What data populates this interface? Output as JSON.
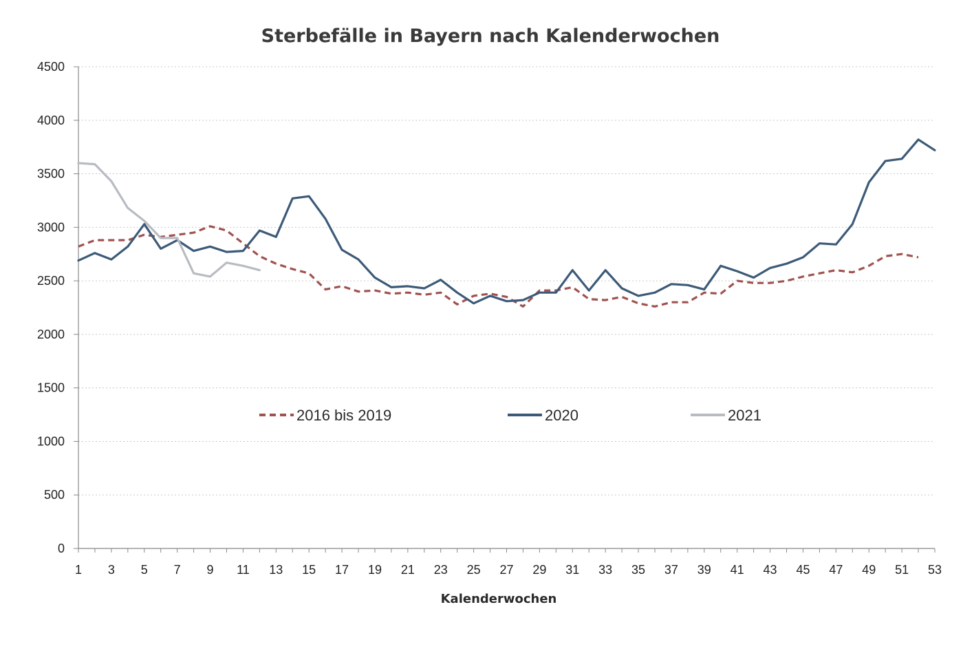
{
  "chart_data": {
    "type": "line",
    "title": "Sterbefälle in Bayern nach Kalenderwochen",
    "xlabel": "Kalenderwochen",
    "ylabel": "",
    "xlim": [
      1,
      53
    ],
    "ylim": [
      0,
      4500
    ],
    "yticks": [
      0,
      500,
      1000,
      1500,
      2000,
      2500,
      3000,
      3500,
      4000,
      4500
    ],
    "xticks": [
      1,
      3,
      5,
      7,
      9,
      11,
      13,
      15,
      17,
      19,
      21,
      23,
      25,
      27,
      29,
      31,
      33,
      35,
      37,
      39,
      41,
      43,
      45,
      47,
      49,
      51,
      53
    ],
    "grid": "horizontal dotted",
    "legend_position": "center",
    "series": [
      {
        "name": "2016 bis 2019",
        "color": "#a0524f",
        "style": "dashed",
        "x": [
          1,
          2,
          3,
          4,
          5,
          6,
          7,
          8,
          9,
          10,
          11,
          12,
          13,
          14,
          15,
          16,
          17,
          18,
          19,
          20,
          21,
          22,
          23,
          24,
          25,
          26,
          27,
          28,
          29,
          30,
          31,
          32,
          33,
          34,
          35,
          36,
          37,
          38,
          39,
          40,
          41,
          42,
          43,
          44,
          45,
          46,
          47,
          48,
          49,
          50,
          51,
          52
        ],
        "values": [
          2820,
          2880,
          2880,
          2880,
          2930,
          2910,
          2930,
          2950,
          3010,
          2970,
          2850,
          2730,
          2660,
          2610,
          2570,
          2420,
          2450,
          2400,
          2410,
          2380,
          2390,
          2370,
          2390,
          2280,
          2360,
          2380,
          2350,
          2260,
          2410,
          2410,
          2440,
          2330,
          2320,
          2350,
          2290,
          2260,
          2300,
          2300,
          2390,
          2380,
          2500,
          2480,
          2480,
          2500,
          2540,
          2570,
          2600,
          2580,
          2640,
          2730,
          2750,
          2720
        ]
      },
      {
        "name": "2020",
        "color": "#3c5a78",
        "style": "solid",
        "x": [
          1,
          2,
          3,
          4,
          5,
          6,
          7,
          8,
          9,
          10,
          11,
          12,
          13,
          14,
          15,
          16,
          17,
          18,
          19,
          20,
          21,
          22,
          23,
          24,
          25,
          26,
          27,
          28,
          29,
          30,
          31,
          32,
          33,
          34,
          35,
          36,
          37,
          38,
          39,
          40,
          41,
          42,
          43,
          44,
          45,
          46,
          47,
          48,
          49,
          50,
          51,
          52,
          53
        ],
        "values": [
          2690,
          2760,
          2700,
          2820,
          3030,
          2800,
          2880,
          2780,
          2820,
          2770,
          2780,
          2970,
          2910,
          3270,
          3290,
          3080,
          2790,
          2700,
          2530,
          2440,
          2450,
          2430,
          2510,
          2390,
          2290,
          2360,
          2310,
          2320,
          2390,
          2390,
          2600,
          2410,
          2600,
          2430,
          2360,
          2390,
          2470,
          2460,
          2420,
          2640,
          2590,
          2530,
          2620,
          2660,
          2720,
          2850,
          2840,
          3030,
          3420,
          3620,
          3640,
          3820,
          3720
        ]
      },
      {
        "name": "2021",
        "color": "#b8bcc2",
        "style": "solid",
        "x": [
          1,
          2,
          3,
          4,
          5,
          6,
          7,
          8,
          9,
          10,
          11,
          12
        ],
        "values": [
          3600,
          3590,
          3430,
          3180,
          3060,
          2900,
          2900,
          2570,
          2540,
          2670,
          2640,
          2600
        ]
      }
    ]
  }
}
